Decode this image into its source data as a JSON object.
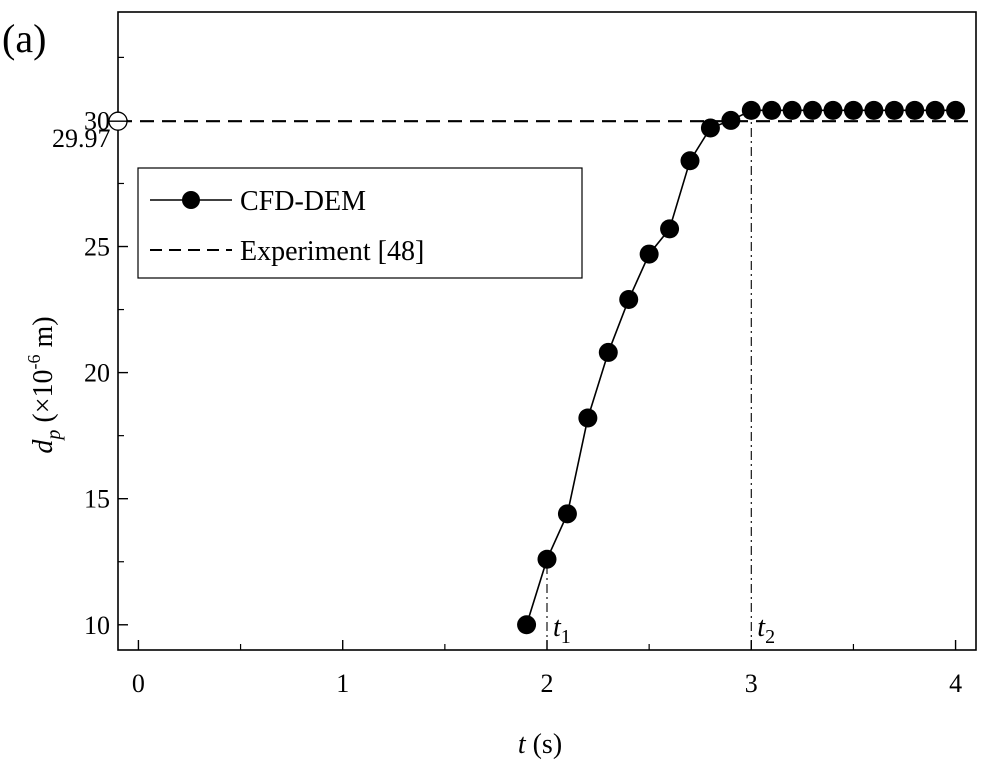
{
  "panel_label": "(a)",
  "chart_data": {
    "type": "line",
    "xlabel": {
      "main": "t",
      "unit": " (s)"
    },
    "ylabel": {
      "main": "d",
      "sub": "p",
      "pre": " (×10",
      "sup": "-6",
      "post": " m)"
    },
    "xlim": [
      -0.1,
      4.1
    ],
    "ylim": [
      9,
      34.3
    ],
    "xticks": [
      0,
      1,
      2,
      3,
      4
    ],
    "yticks": [
      10,
      15,
      20,
      25,
      30
    ],
    "series": [
      {
        "name": "CFD-DEM",
        "style": "line-with-filled-circles",
        "color": "#000000",
        "x": [
          1.9,
          2.0,
          2.1,
          2.2,
          2.3,
          2.4,
          2.5,
          2.6,
          2.7,
          2.8,
          2.9,
          3.0,
          3.1,
          3.2,
          3.3,
          3.4,
          3.5,
          3.6,
          3.7,
          3.8,
          3.9,
          4.0
        ],
        "y": [
          10.0,
          12.6,
          14.4,
          18.2,
          20.8,
          22.9,
          24.7,
          25.7,
          28.4,
          29.7,
          30.0,
          30.4,
          30.4,
          30.4,
          30.4,
          30.4,
          30.4,
          30.4,
          30.4,
          30.4,
          30.4,
          30.4
        ]
      },
      {
        "name": "Experiment [48]",
        "style": "dashed",
        "color": "#000000",
        "y": 29.97
      }
    ],
    "annotations": {
      "reference_value_label": "29.97",
      "reference_value": 29.97,
      "markers": [
        {
          "label_main": "t",
          "label_sub": "1",
          "x": 2.0,
          "y_top": 12.6
        },
        {
          "label_main": "t",
          "label_sub": "2",
          "x": 3.0,
          "y_top": 30.4
        }
      ]
    },
    "legend": {
      "placement": "upper-left"
    },
    "grid": false
  }
}
